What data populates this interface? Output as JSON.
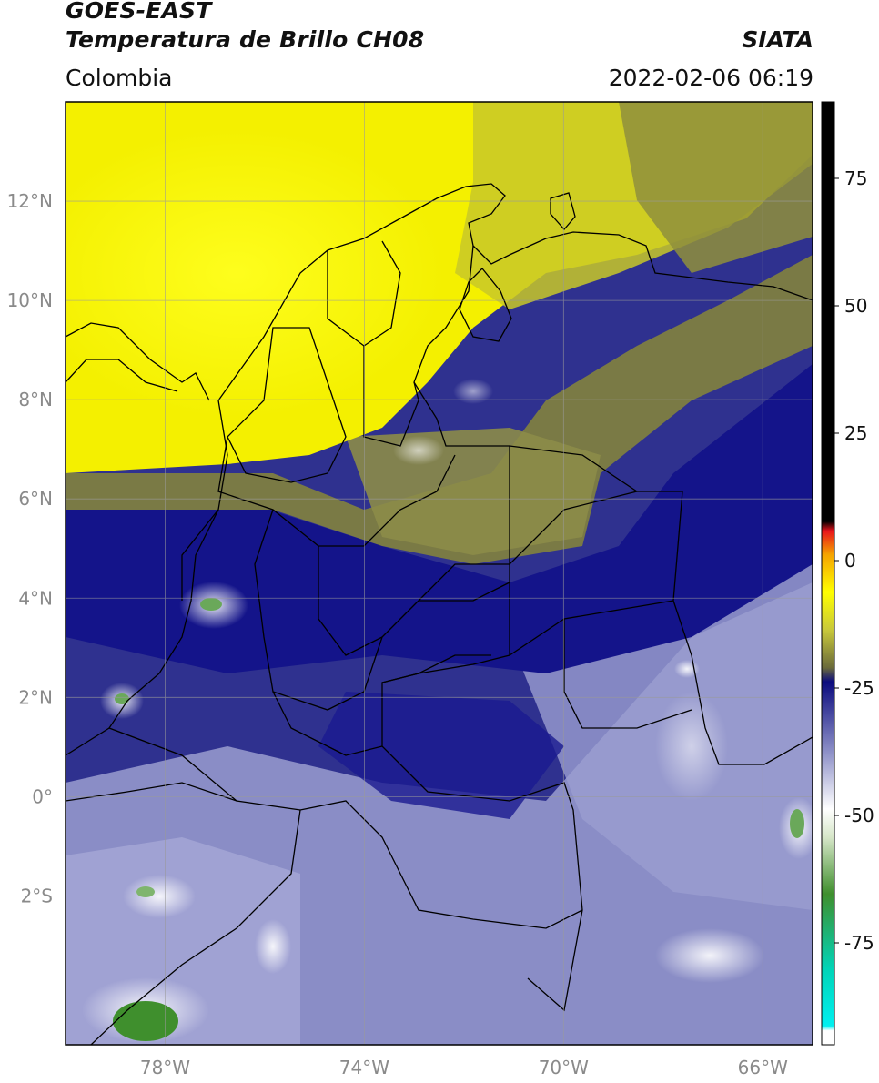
{
  "header": {
    "title_line1": "GOES-EAST",
    "title_line2": "Temperatura de Brillo CH08",
    "organization": "SIATA",
    "region": "Colombia",
    "timestamp": "2022-02-06 06:19"
  },
  "map": {
    "lon_range": [
      -80,
      -65
    ],
    "lat_range": [
      -5,
      14
    ],
    "lat_ticks": [
      {
        "value": 12,
        "label": "12°N"
      },
      {
        "value": 10,
        "label": "10°N"
      },
      {
        "value": 8,
        "label": "8°N"
      },
      {
        "value": 6,
        "label": "6°N"
      },
      {
        "value": 4,
        "label": "4°N"
      },
      {
        "value": 2,
        "label": "2°N"
      },
      {
        "value": 0,
        "label": "0°"
      },
      {
        "value": -2,
        "label": "2°S"
      }
    ],
    "lon_ticks": [
      {
        "value": -78,
        "label": "78°W"
      },
      {
        "value": -74,
        "label": "74°W"
      },
      {
        "value": -70,
        "label": "70°W"
      },
      {
        "value": -66,
        "label": "66°W"
      }
    ],
    "grid": true
  },
  "colorbar": {
    "range": [
      -95,
      90
    ],
    "ticks": [
      {
        "value": 75,
        "label": "75"
      },
      {
        "value": 50,
        "label": "50"
      },
      {
        "value": 25,
        "label": "25"
      },
      {
        "value": 0,
        "label": "0"
      },
      {
        "value": -25,
        "label": "-25"
      },
      {
        "value": -50,
        "label": "-50"
      },
      {
        "value": -75,
        "label": "-75"
      }
    ],
    "colors": {
      "black": "#000000",
      "red": "#e8121b",
      "orange": "#f5a300",
      "yellow": "#ffff00",
      "olive": "#8c8c3a",
      "navy": "#0b0b7e",
      "periwinkle": "#8e91c8",
      "white": "#ffffff",
      "green": "#3f8f2d",
      "teal": "#00d4b8",
      "cyan": "#00f0f0"
    }
  }
}
